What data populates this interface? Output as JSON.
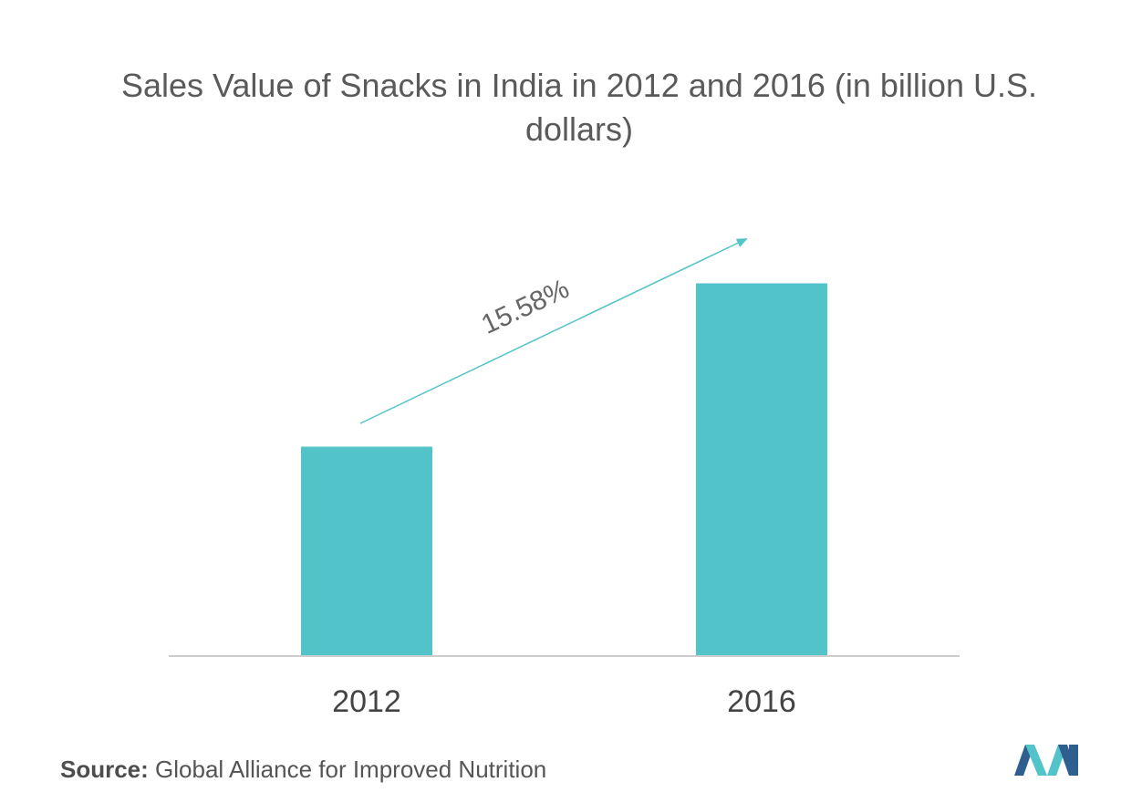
{
  "title": "Sales Value of Snacks in India in 2012 and 2016 (in billion U.S. dollars)",
  "source_label": "Source:",
  "source_text": "Global Alliance for Improved Nutrition",
  "chart_data": {
    "type": "bar",
    "title": "Sales Value of Snacks in India in 2012 and 2016 (in billion U.S. dollars)",
    "categories": [
      "2012",
      "2016"
    ],
    "values": [
      5.0,
      8.9
    ],
    "xlabel": "",
    "ylabel": "",
    "ylim": [
      0,
      10
    ],
    "grid": false,
    "legend": "none",
    "annotation": "15.58%",
    "colors": {
      "bar": "#52c3c9",
      "axis": "#cccccc",
      "arrow": "#52c3c9"
    }
  }
}
